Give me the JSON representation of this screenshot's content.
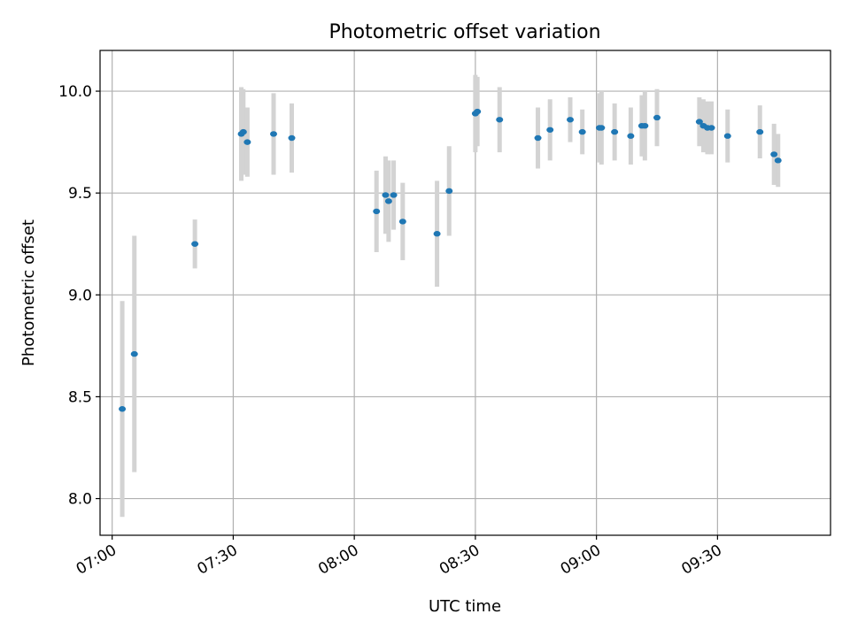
{
  "chart_data": {
    "type": "scatter",
    "title": "Photometric offset variation",
    "xlabel": "UTC time",
    "ylabel": "Photometric offset",
    "x_ticks": [
      "07:00",
      "07:30",
      "08:00",
      "08:30",
      "09:00",
      "09:30"
    ],
    "y_ticks": [
      "8.0",
      "8.5",
      "9.0",
      "9.5",
      "10.0"
    ],
    "xlim": [
      "06:57",
      "09:58"
    ],
    "ylim": [
      7.82,
      10.2
    ],
    "grid": true,
    "colors": {
      "point": "#1f77b4",
      "errorbar": "#d3d3d3"
    },
    "points": [
      {
        "t": "07:02:30",
        "y": 8.44,
        "err": 0.53
      },
      {
        "t": "07:05:30",
        "y": 8.71,
        "err": 0.58
      },
      {
        "t": "07:20:30",
        "y": 9.25,
        "err": 0.12
      },
      {
        "t": "07:32:00",
        "y": 9.79,
        "err": 0.23
      },
      {
        "t": "07:32:30",
        "y": 9.8,
        "err": 0.21
      },
      {
        "t": "07:33:30",
        "y": 9.75,
        "err": 0.17
      },
      {
        "t": "07:40:00",
        "y": 9.79,
        "err": 0.2
      },
      {
        "t": "07:44:30",
        "y": 9.77,
        "err": 0.17
      },
      {
        "t": "08:05:30",
        "y": 9.41,
        "err": 0.2
      },
      {
        "t": "08:07:45",
        "y": 9.49,
        "err": 0.19
      },
      {
        "t": "08:08:30",
        "y": 9.46,
        "err": 0.2
      },
      {
        "t": "08:09:45",
        "y": 9.49,
        "err": 0.17
      },
      {
        "t": "08:12:00",
        "y": 9.36,
        "err": 0.19
      },
      {
        "t": "08:20:30",
        "y": 9.3,
        "err": 0.26
      },
      {
        "t": "08:23:30",
        "y": 9.51,
        "err": 0.22
      },
      {
        "t": "08:30:00",
        "y": 9.89,
        "err": 0.19
      },
      {
        "t": "08:30:30",
        "y": 9.9,
        "err": 0.17
      },
      {
        "t": "08:36:00",
        "y": 9.86,
        "err": 0.16
      },
      {
        "t": "08:45:30",
        "y": 9.77,
        "err": 0.15
      },
      {
        "t": "08:48:30",
        "y": 9.81,
        "err": 0.15
      },
      {
        "t": "08:53:30",
        "y": 9.86,
        "err": 0.11
      },
      {
        "t": "08:56:30",
        "y": 9.8,
        "err": 0.11
      },
      {
        "t": "09:00:45",
        "y": 9.82,
        "err": 0.17
      },
      {
        "t": "09:01:15",
        "y": 9.82,
        "err": 0.18
      },
      {
        "t": "09:04:30",
        "y": 9.8,
        "err": 0.14
      },
      {
        "t": "09:08:30",
        "y": 9.78,
        "err": 0.14
      },
      {
        "t": "09:11:15",
        "y": 9.83,
        "err": 0.15
      },
      {
        "t": "09:12:00",
        "y": 9.83,
        "err": 0.17
      },
      {
        "t": "09:15:00",
        "y": 9.87,
        "err": 0.14
      },
      {
        "t": "09:25:30",
        "y": 9.85,
        "err": 0.12
      },
      {
        "t": "09:26:30",
        "y": 9.83,
        "err": 0.13
      },
      {
        "t": "09:27:30",
        "y": 9.82,
        "err": 0.13
      },
      {
        "t": "09:28:30",
        "y": 9.82,
        "err": 0.13
      },
      {
        "t": "09:32:30",
        "y": 9.78,
        "err": 0.13
      },
      {
        "t": "09:40:30",
        "y": 9.8,
        "err": 0.13
      },
      {
        "t": "09:44:00",
        "y": 9.69,
        "err": 0.15
      },
      {
        "t": "09:45:00",
        "y": 9.66,
        "err": 0.13
      }
    ]
  }
}
